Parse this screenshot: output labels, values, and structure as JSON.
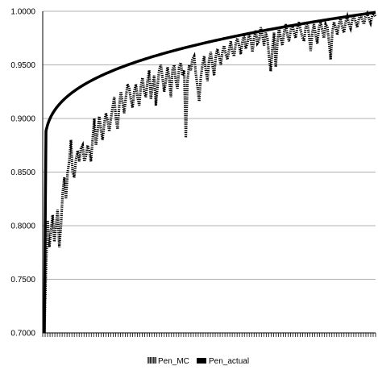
{
  "chart_data": {
    "type": "line",
    "title": "",
    "xlabel": "",
    "ylabel": "",
    "ylim": [
      0.7,
      1.0
    ],
    "y_ticks": [
      "1.0000",
      "0.9500",
      "0.9000",
      "0.8500",
      "0.8000",
      "0.7500",
      "0.7000"
    ],
    "y_tick_values": [
      1.0,
      0.95,
      0.9,
      0.85,
      0.8,
      0.75,
      0.7
    ],
    "grid": "horizontal",
    "legend_position": "bottom",
    "x_count": 200,
    "series": [
      {
        "name": "Pen_MC",
        "style": "dotted",
        "color": "#000000",
        "values": [
          0.7,
          0.76,
          0.805,
          0.78,
          0.795,
          0.81,
          0.785,
          0.8,
          0.815,
          0.78,
          0.8,
          0.83,
          0.845,
          0.825,
          0.85,
          0.86,
          0.88,
          0.85,
          0.845,
          0.862,
          0.87,
          0.86,
          0.872,
          0.875,
          0.86,
          0.865,
          0.875,
          0.87,
          0.86,
          0.88,
          0.9,
          0.875,
          0.888,
          0.902,
          0.89,
          0.88,
          0.895,
          0.905,
          0.898,
          0.888,
          0.9,
          0.91,
          0.92,
          0.9,
          0.89,
          0.912,
          0.925,
          0.915,
          0.905,
          0.92,
          0.932,
          0.928,
          0.918,
          0.91,
          0.925,
          0.932,
          0.92,
          0.912,
          0.93,
          0.938,
          0.925,
          0.92,
          0.935,
          0.945,
          0.918,
          0.93,
          0.94,
          0.912,
          0.93,
          0.945,
          0.95,
          0.938,
          0.925,
          0.935,
          0.948,
          0.938,
          0.92,
          0.945,
          0.95,
          0.935,
          0.928,
          0.948,
          0.952,
          0.94,
          0.945,
          0.882,
          0.935,
          0.95,
          0.945,
          0.955,
          0.958,
          0.942,
          0.93,
          0.916,
          0.938,
          0.95,
          0.958,
          0.945,
          0.935,
          0.955,
          0.962,
          0.95,
          0.94,
          0.958,
          0.965,
          0.958,
          0.95,
          0.962,
          0.968,
          0.96,
          0.955,
          0.964,
          0.972,
          0.962,
          0.958,
          0.97,
          0.975,
          0.968,
          0.96,
          0.972,
          0.978,
          0.965,
          0.97,
          0.98,
          0.974,
          0.962,
          0.975,
          0.982,
          0.97,
          0.972,
          0.985,
          0.978,
          0.968,
          0.98,
          0.975,
          0.958,
          0.944,
          0.965,
          0.98,
          0.948,
          0.97,
          0.985,
          0.975,
          0.968,
          0.98,
          0.988,
          0.978,
          0.972,
          0.982,
          0.988,
          0.98,
          0.975,
          0.985,
          0.99,
          0.982,
          0.976,
          0.972,
          0.985,
          0.99,
          0.978,
          0.963,
          0.98,
          0.988,
          0.978,
          0.97,
          0.985,
          0.99,
          0.982,
          0.975,
          0.988,
          0.985,
          0.972,
          0.955,
          0.98,
          0.99,
          0.985,
          0.978,
          0.988,
          0.993,
          0.985,
          0.98,
          0.99,
          0.995,
          0.988,
          0.984,
          0.992,
          0.996,
          0.99,
          0.985,
          0.993,
          0.997,
          0.992,
          0.988,
          0.995,
          0.998,
          0.993,
          0.989,
          0.996,
          0.998,
          0.995
        ]
      },
      {
        "name": "Pen_actual",
        "style": "solid-thick",
        "color": "#000000",
        "curve": {
          "start": 0.7,
          "jump": 0.865,
          "end": 0.999,
          "shape": "concave"
        }
      }
    ]
  }
}
